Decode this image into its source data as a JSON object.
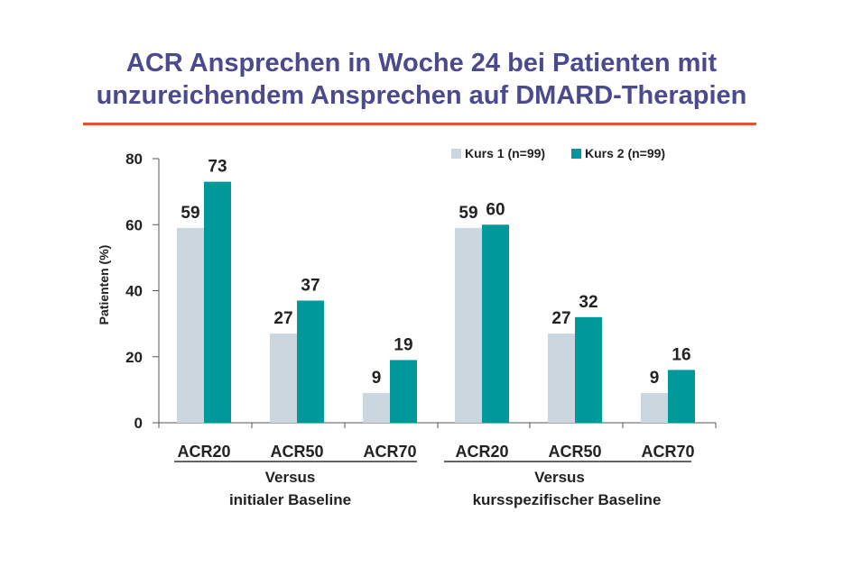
{
  "title_line1": "ACR Ansprechen in Woche 24 bei Patienten mit",
  "title_line2": "unzureichendem Ansprechen auf DMARD-Therapien",
  "colors": {
    "title": "#4a4a8c",
    "rule": "#e2572a",
    "kurs1": "#cbd6de",
    "kurs2": "#00999b"
  },
  "chart_data": {
    "type": "bar",
    "title": "ACR Ansprechen in Woche 24 bei Patienten mit unzureichendem Ansprechen auf DMARD-Therapien",
    "ylabel": "Patienten (%)",
    "ylim": [
      0,
      80
    ],
    "yticks": [
      0,
      20,
      40,
      60,
      80
    ],
    "categories": [
      "ACR20",
      "ACR50",
      "ACR70",
      "ACR20",
      "ACR50",
      "ACR70"
    ],
    "groups": [
      {
        "label_line1": "Versus",
        "label_line2": "initialer Baseline"
      },
      {
        "label_line1": "Versus",
        "label_line2": "kursspezifischer Baseline"
      }
    ],
    "series": [
      {
        "name": "Kurs 1 (n=99)",
        "values": [
          59,
          27,
          9,
          59,
          27,
          9
        ]
      },
      {
        "name": "Kurs 2 (n=99)",
        "values": [
          73,
          37,
          19,
          60,
          32,
          16
        ]
      }
    ],
    "legend": "top-right",
    "grid": false
  }
}
